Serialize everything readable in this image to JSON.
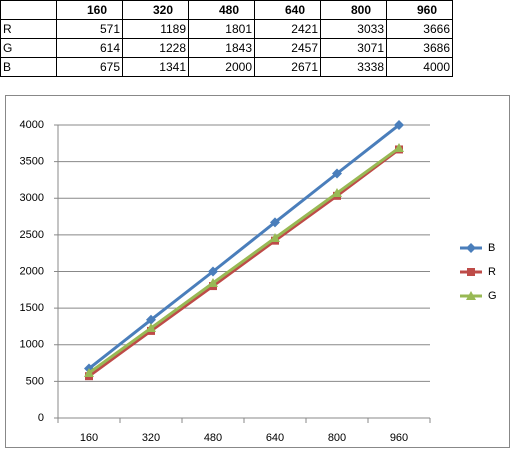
{
  "table": {
    "columns": [
      160,
      320,
      480,
      640,
      800,
      960
    ],
    "rows": [
      {
        "label": "R",
        "values": [
          571,
          1189,
          1801,
          2421,
          3033,
          3666
        ]
      },
      {
        "label": "G",
        "values": [
          614,
          1228,
          1843,
          2457,
          3071,
          3686
        ]
      },
      {
        "label": "B",
        "values": [
          675,
          1341,
          2000,
          2671,
          3338,
          4000
        ]
      }
    ]
  },
  "chart_data": {
    "type": "line",
    "categories": [
      160,
      320,
      480,
      640,
      800,
      960
    ],
    "series": [
      {
        "name": "B",
        "color": "#4a7ebb",
        "marker": "diamond",
        "values": [
          675,
          1341,
          2000,
          2671,
          3338,
          4000
        ]
      },
      {
        "name": "R",
        "color": "#be4b48",
        "marker": "square",
        "values": [
          571,
          1189,
          1801,
          2421,
          3033,
          3666
        ]
      },
      {
        "name": "G",
        "color": "#98b954",
        "marker": "triangle",
        "values": [
          614,
          1228,
          1843,
          2457,
          3071,
          3686
        ]
      }
    ],
    "ylim": [
      0,
      4000
    ],
    "yticks": [
      0,
      500,
      1000,
      1500,
      2000,
      2500,
      3000,
      3500,
      4000
    ],
    "grid": true,
    "legend": "right"
  }
}
